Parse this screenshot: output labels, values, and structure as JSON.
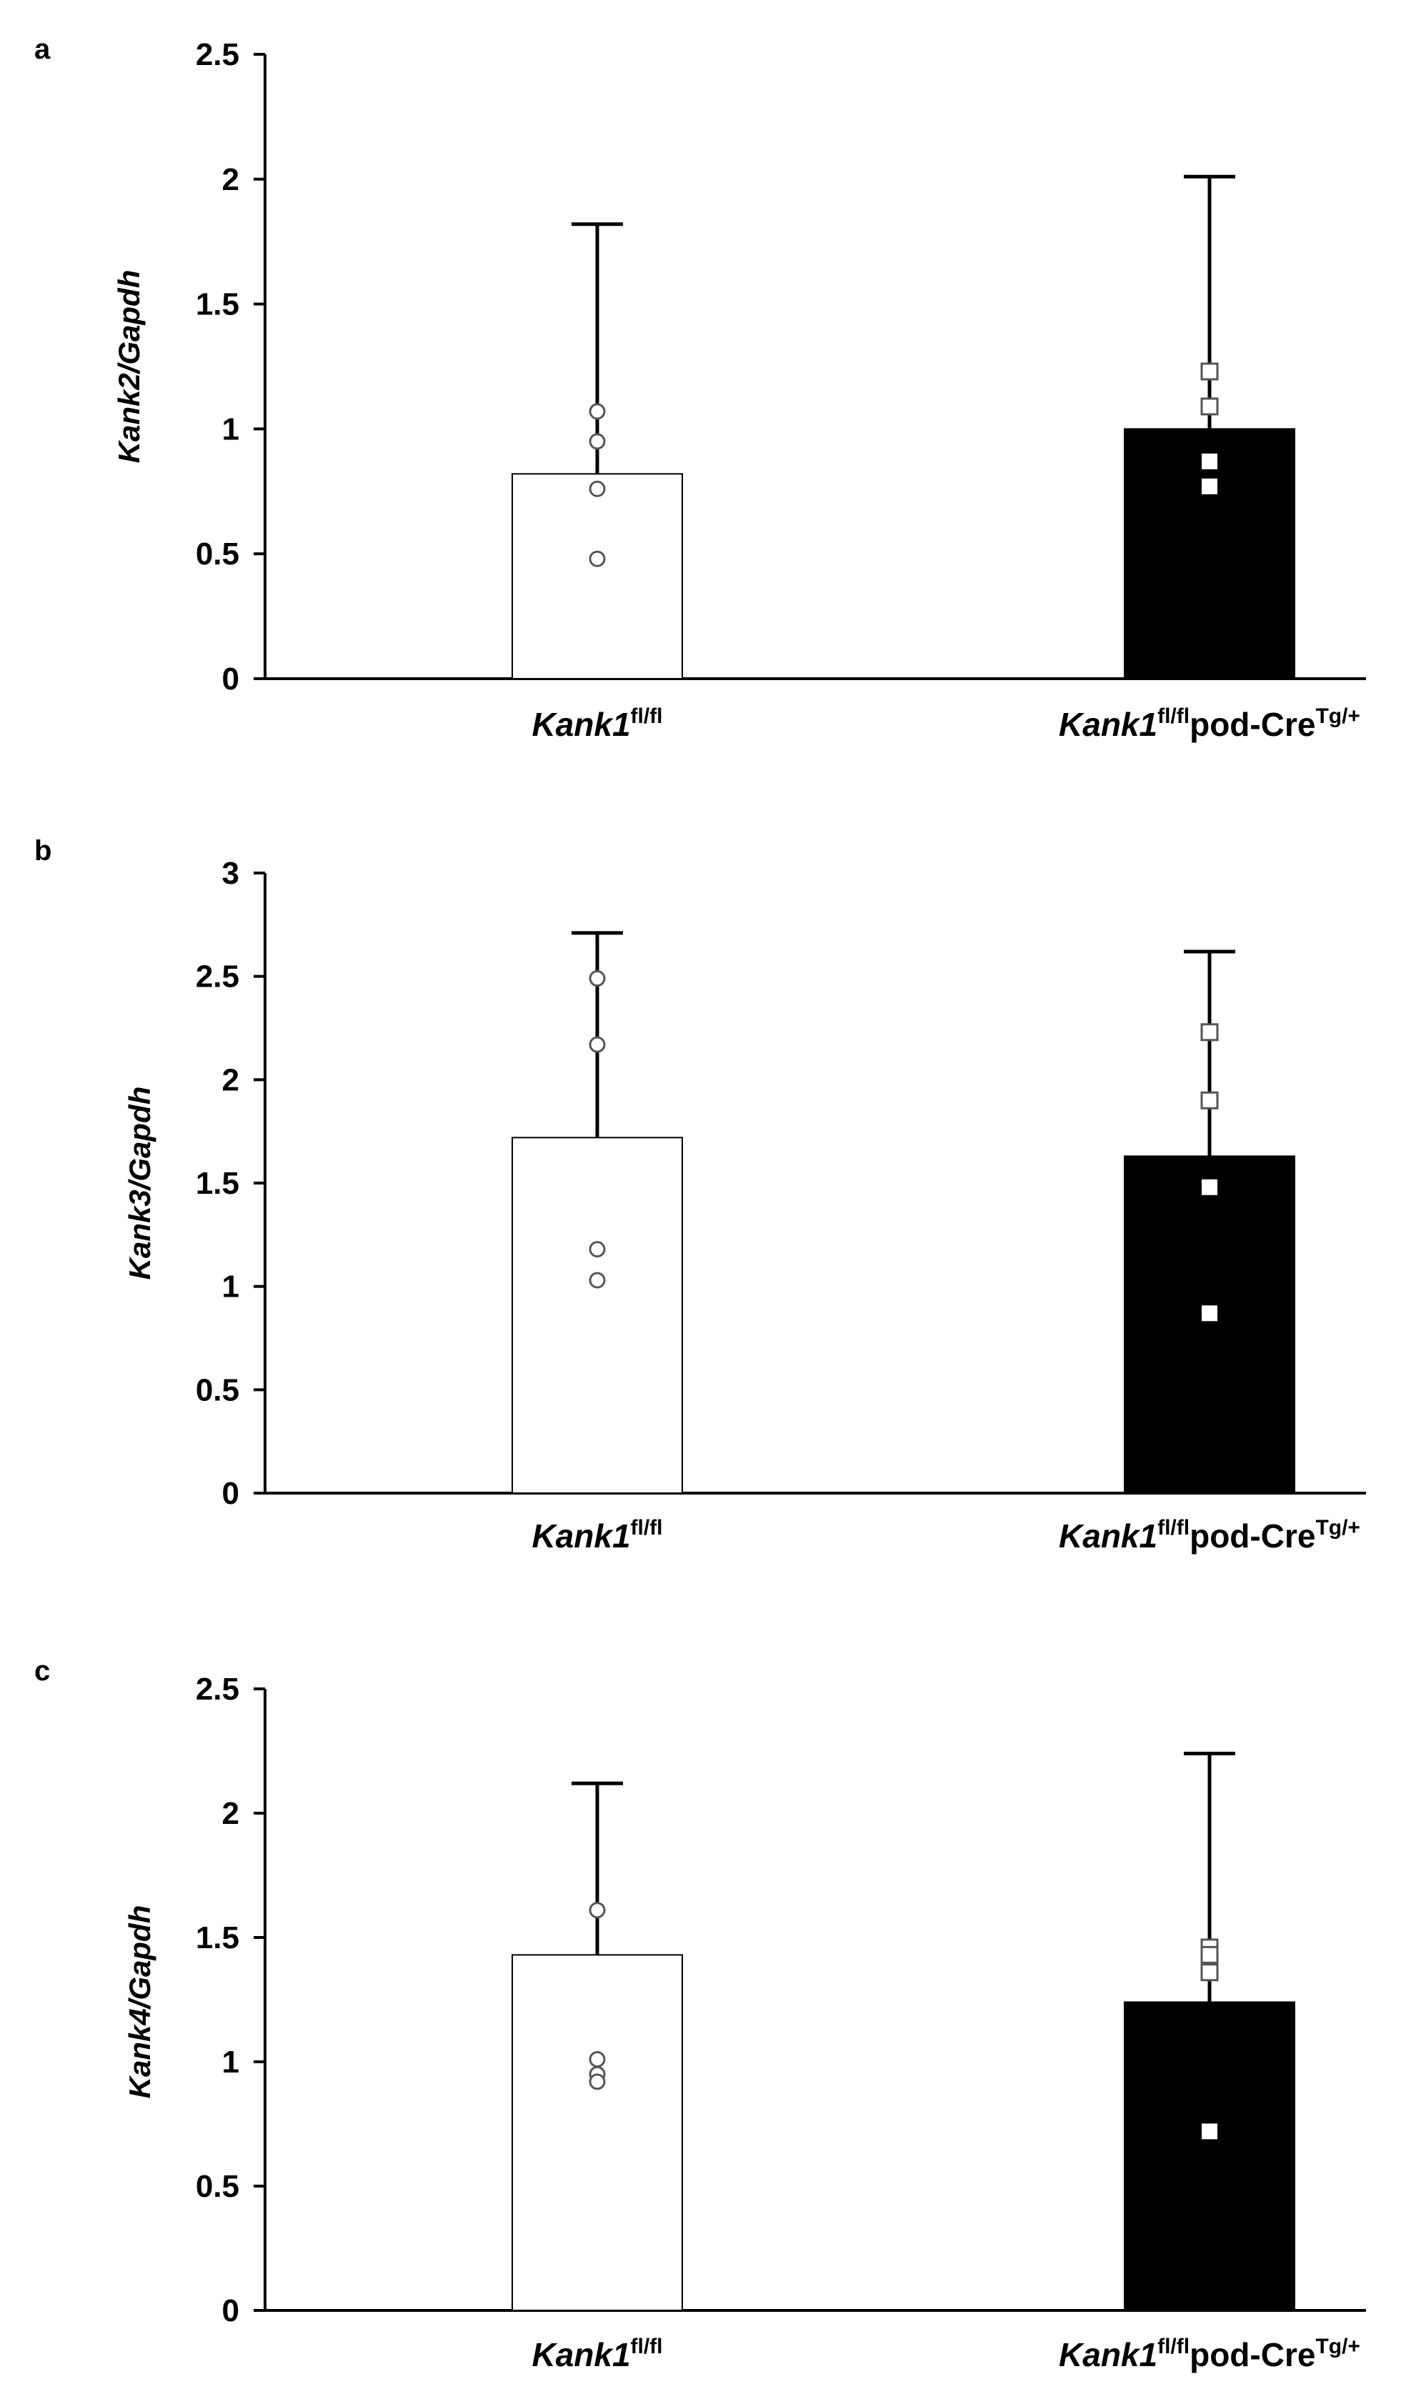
{
  "chart_data": [
    {
      "type": "bar",
      "panel_label": "a",
      "ylabel": "Kank2/Gapdh",
      "ylim": [
        0,
        2.5
      ],
      "yticks": [
        0,
        0.5,
        1,
        1.5,
        2,
        2.5
      ],
      "ytick_labels": [
        "0",
        "0.5",
        "1",
        "1.5",
        "2",
        "2.5"
      ],
      "categories": [
        {
          "gene": "Kank1",
          "gene_sup": "fl/fl",
          "suffix": "",
          "suffix_sup": ""
        },
        {
          "gene": "Kank1",
          "gene_sup": "fl/fl",
          "suffix": "pod-Cre",
          "suffix_sup": "Tg/+"
        }
      ],
      "values": [
        0.82,
        1.0
      ],
      "error_upper": [
        1.82,
        2.01
      ],
      "bar_fill": [
        "#ffffff",
        "#000000"
      ],
      "points": [
        [
          1.07,
          0.95,
          0.76,
          0.48
        ],
        [
          1.23,
          1.09,
          0.87,
          0.77
        ]
      ],
      "point_marker": [
        "circle",
        "square"
      ]
    },
    {
      "type": "bar",
      "panel_label": "b",
      "ylabel": "Kank3/Gapdh",
      "ylim": [
        0,
        3
      ],
      "yticks": [
        0,
        0.5,
        1,
        1.5,
        2,
        2.5,
        3
      ],
      "ytick_labels": [
        "0",
        "0.5",
        "1",
        "1.5",
        "2",
        "2.5",
        "3"
      ],
      "categories": [
        {
          "gene": "Kank1",
          "gene_sup": "fl/fl",
          "suffix": "",
          "suffix_sup": ""
        },
        {
          "gene": "Kank1",
          "gene_sup": "fl/fl",
          "suffix": "pod-Cre",
          "suffix_sup": "Tg/+"
        }
      ],
      "values": [
        1.72,
        1.63
      ],
      "error_upper": [
        2.71,
        2.62
      ],
      "bar_fill": [
        "#ffffff",
        "#000000"
      ],
      "points": [
        [
          2.49,
          2.17,
          1.18,
          1.03
        ],
        [
          2.23,
          1.9,
          1.48,
          0.87
        ]
      ],
      "point_marker": [
        "circle",
        "square"
      ]
    },
    {
      "type": "bar",
      "panel_label": "c",
      "ylabel": "Kank4/Gapdh",
      "ylim": [
        0,
        2.5
      ],
      "yticks": [
        0,
        0.5,
        1,
        1.5,
        2,
        2.5
      ],
      "ytick_labels": [
        "0",
        "0.5",
        "1",
        "1.5",
        "2",
        "2.5"
      ],
      "categories": [
        {
          "gene": "Kank1",
          "gene_sup": "fl/fl",
          "suffix": "",
          "suffix_sup": ""
        },
        {
          "gene": "Kank1",
          "gene_sup": "fl/fl",
          "suffix": "pod-Cre",
          "suffix_sup": "Tg/+"
        }
      ],
      "values": [
        1.43,
        1.24
      ],
      "error_upper": [
        2.12,
        2.24
      ],
      "bar_fill": [
        "#ffffff",
        "#000000"
      ],
      "points": [
        [
          1.61,
          1.01,
          0.95,
          0.92
        ],
        [
          1.46,
          1.43,
          1.36,
          0.72
        ]
      ],
      "point_marker": [
        "circle",
        "square"
      ]
    }
  ]
}
